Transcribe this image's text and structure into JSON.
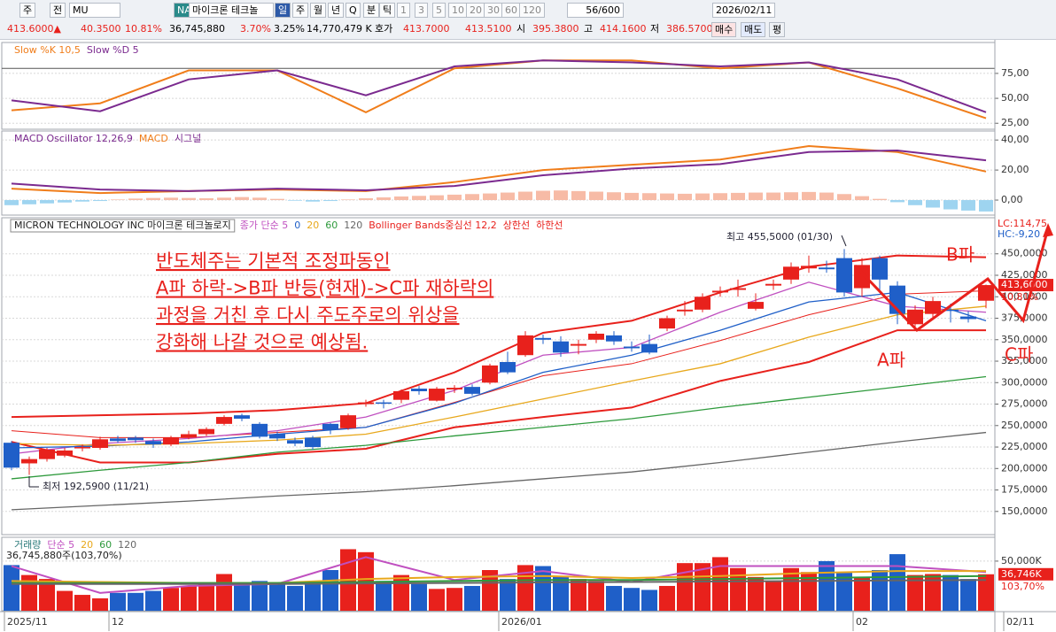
{
  "toolbar": {
    "row1": [
      "주",
      "전",
      "MU",
      "NA",
      "마이크론 테크놀",
      "일",
      "주",
      "월",
      "년",
      "Q",
      "분",
      "틱",
      "1",
      "3",
      "5",
      "10",
      "20",
      "30",
      "60",
      "120",
      "56/600",
      "2026/02/11"
    ],
    "row2": [
      "413.6000▲",
      "40.3500",
      "10.81%",
      "36,745,880",
      "3.70%",
      "3.25%",
      "14,770,479 K",
      "호가",
      "413.7000",
      "413.5100",
      "시",
      "395.3800",
      "고",
      "414.1600",
      "저",
      "386.5700",
      "매수",
      "매도",
      "평"
    ]
  },
  "chart_data": [
    {
      "type": "stochastic",
      "series": [
        {
          "name": "Slow %K 10,5",
          "color": "#f07d1a",
          "x": [
            0,
            5,
            10,
            15,
            20,
            25,
            30,
            35,
            40,
            45,
            50,
            55
          ],
          "values": [
            38,
            45,
            78,
            78,
            36,
            80,
            88,
            88,
            80,
            86,
            60,
            30
          ]
        },
        {
          "name": "Slow %D 5",
          "color": "#7b2a8f",
          "x": [
            0,
            5,
            10,
            15,
            20,
            25,
            30,
            35,
            40,
            45,
            50,
            55
          ],
          "values": [
            48,
            37,
            69,
            78,
            53,
            82,
            88,
            86,
            82,
            86,
            69,
            36
          ]
        }
      ],
      "ylim": [
        19,
        106
      ],
      "yticks": [
        {
          "value": 75,
          "label": "75,00"
        },
        {
          "value": 50,
          "label": "50,00"
        },
        {
          "value": 25,
          "label": "25,00"
        }
      ],
      "ref_line": 80
    },
    {
      "type": "macd",
      "oscillator": {
        "name": "MACD Oscillator 12,26,9",
        "pos_color": "#f7bba6",
        "neg_color": "#9ed4f0",
        "values": [
          -3.4,
          -2.8,
          -2.2,
          -1.6,
          -1.0,
          -0.6,
          0.4,
          1.0,
          1.4,
          1.6,
          1.4,
          1.2,
          1.6,
          2.0,
          1.6,
          0.8,
          -0.4,
          -1.0,
          -0.6,
          0.4,
          1.2,
          1.8,
          2.4,
          2.8,
          3.2,
          3.6,
          4.0,
          4.4,
          5.0,
          5.6,
          6.2,
          6.4,
          6.0,
          5.6,
          5.2,
          4.8,
          4.6,
          4.4,
          4.2,
          4.4,
          4.6,
          4.8,
          5.0,
          5.0,
          5.2,
          5.4,
          5.0,
          4.0,
          2.6,
          0.8,
          -1.4,
          -3.4,
          -5.0,
          -6.2,
          -7.0,
          -7.6
        ]
      },
      "series": [
        {
          "name": "MACD",
          "color": "#f07d1a",
          "x": [
            0,
            5,
            10,
            15,
            20,
            25,
            30,
            35,
            40,
            45,
            50,
            55
          ],
          "values": [
            7.6,
            4.7,
            6,
            7,
            6,
            12,
            20,
            23.5,
            27,
            36,
            32,
            19
          ]
        },
        {
          "name": "시그널",
          "color": "#7b2a8f",
          "x": [
            0,
            5,
            10,
            15,
            20,
            25,
            30,
            35,
            40,
            45,
            50,
            55
          ],
          "values": [
            11,
            7,
            6,
            7.6,
            6.5,
            9.4,
            16.5,
            21,
            24,
            32,
            33,
            26.5
          ]
        }
      ],
      "ylim": [
        -10,
        46
      ],
      "yticks": [
        {
          "value": 40,
          "label": "40,00"
        },
        {
          "value": 20,
          "label": "20,00"
        },
        {
          "value": 0,
          "label": "0,00"
        }
      ]
    },
    {
      "type": "candlestick",
      "security_name": "MICRON TECHNOLOGY INC  마이크론 테크놀로지",
      "up_color": "#e8211c",
      "down_color": "#1f5fc8",
      "ohlc": {
        "open": [
          230,
          206,
          211,
          215,
          224,
          224,
          235,
          236,
          232,
          228,
          236,
          240,
          252,
          262,
          252,
          240,
          233,
          236,
          252,
          247,
          275,
          277,
          280,
          293,
          279,
          292,
          295,
          300,
          324,
          332,
          352,
          348,
          343,
          350,
          355,
          342,
          345,
          363,
          383,
          385,
          405,
          408,
          386,
          413,
          420,
          433,
          434,
          445,
          410,
          445,
          413,
          368,
          380,
          385,
          377,
          395.38
        ],
        "high": [
          232,
          214,
          224,
          224,
          228,
          237,
          238,
          238,
          235,
          238,
          244,
          248,
          262,
          264,
          254,
          243,
          236,
          238,
          253,
          264,
          280,
          280,
          292,
          296,
          295,
          297,
          298,
          322,
          336,
          360,
          356,
          354,
          350,
          360,
          360,
          348,
          356,
          378,
          395,
          404,
          412,
          420,
          404,
          420,
          440,
          448,
          442,
          455.5,
          445,
          448,
          418,
          390,
          400,
          392,
          383,
          414.16
        ],
        "low": [
          198,
          192.59,
          208,
          213,
          220,
          222,
          230,
          230,
          224,
          226,
          234,
          238,
          250,
          255,
          235,
          232,
          226,
          222,
          240,
          245,
          272,
          270,
          276,
          286,
          278,
          288,
          285,
          298,
          310,
          330,
          345,
          330,
          333,
          346,
          344,
          336,
          333,
          360,
          378,
          382,
          400,
          400,
          384,
          408,
          415,
          428,
          428,
          400,
          400,
          405,
          368,
          365,
          375,
          370,
          370,
          386.57
        ],
        "close": [
          201,
          211,
          222,
          221,
          225,
          234,
          232,
          233,
          228,
          236,
          240,
          246,
          260,
          258,
          237,
          235,
          229,
          225,
          245,
          262,
          277,
          276,
          290,
          290,
          293,
          294,
          287,
          320,
          312,
          355,
          350,
          335,
          345,
          357,
          348,
          340,
          335,
          375,
          385,
          400,
          407,
          410,
          394,
          415,
          435,
          436,
          432,
          405,
          437,
          420,
          380,
          385,
          395,
          384,
          374,
          413.6
        ]
      },
      "series": [
        {
          "name": "종가 단순 5",
          "color": "#c050c0",
          "x": [
            0,
            5,
            10,
            15,
            20,
            25,
            30,
            35,
            40,
            45,
            50,
            55
          ],
          "values": [
            217,
            229,
            235,
            244,
            260,
            291,
            332,
            341,
            382,
            417,
            389,
            382
          ]
        },
        {
          "name": "0",
          "color": "#1f5fc8",
          "x": [
            0,
            5,
            10,
            15,
            20,
            25,
            30,
            35,
            40,
            45,
            50,
            55
          ],
          "values": [
            224,
            226,
            231,
            240,
            248,
            276,
            312,
            332,
            361,
            394,
            405,
            372
          ]
        },
        {
          "name": "20",
          "color": "#e8a81c",
          "x": [
            0,
            5,
            10,
            15,
            20,
            25,
            30,
            35,
            40,
            45,
            50,
            55
          ],
          "values": [
            229,
            227,
            229,
            233,
            240,
            260,
            281,
            302,
            322,
            353,
            379,
            389
          ]
        },
        {
          "name": "60",
          "color": "#2e9a3c",
          "x": [
            0,
            5,
            10,
            15,
            20,
            25,
            30,
            35,
            40,
            45,
            50,
            55
          ],
          "values": [
            188,
            198,
            207,
            219,
            227,
            238,
            248,
            258,
            271,
            283,
            295,
            307
          ]
        },
        {
          "name": "120",
          "color": "#666666",
          "x": [
            0,
            5,
            10,
            15,
            20,
            25,
            30,
            35,
            40,
            45,
            50,
            55
          ],
          "values": [
            152,
            157,
            162,
            168,
            173,
            180,
            188,
            196,
            207,
            219,
            231,
            242
          ]
        }
      ],
      "bands": [
        {
          "name": "Bollinger Bands중심선 12,2",
          "color": "#e8211c",
          "x": [
            0,
            5,
            10,
            15,
            20,
            25,
            30,
            35,
            40,
            45,
            50,
            55
          ],
          "values": [
            244,
            236,
            236,
            242,
            248,
            277,
            308,
            322,
            349,
            379,
            403,
            407
          ]
        },
        {
          "name": "상한선",
          "color": "#e8211c",
          "x": [
            0,
            5,
            10,
            15,
            20,
            25,
            30,
            35,
            40,
            45,
            50,
            55
          ],
          "values": [
            260,
            262,
            264,
            268,
            276,
            312,
            358,
            372,
            405,
            435,
            448,
            446
          ]
        },
        {
          "name": "하한선",
          "color": "#e8211c",
          "x": [
            0,
            5,
            10,
            15,
            20,
            25,
            30,
            35,
            40,
            45,
            50,
            55
          ],
          "values": [
            231,
            207,
            207,
            217,
            223,
            248,
            260,
            271,
            302,
            324,
            361,
            361
          ]
        }
      ],
      "ylim": [
        123,
        492
      ],
      "yticks": [
        {
          "value": 150,
          "label": "150,0000"
        },
        {
          "value": 175,
          "label": "175,0000"
        },
        {
          "value": 200,
          "label": "200,0000"
        },
        {
          "value": 225,
          "label": "225,0000"
        },
        {
          "value": 250,
          "label": "250,0000"
        },
        {
          "value": 275,
          "label": "275,0000"
        },
        {
          "value": 300,
          "label": "300,0000"
        },
        {
          "value": 325,
          "label": "325,0000"
        },
        {
          "value": 350,
          "label": "350,0000"
        },
        {
          "value": 375,
          "label": "375,0000"
        },
        {
          "value": 400,
          "label": "400,0000"
        },
        {
          "value": 425,
          "label": "425,0000"
        },
        {
          "value": 450,
          "label": "450,0000"
        }
      ],
      "last_label": {
        "value": 413.6,
        "label": "413,6000"
      },
      "last_change": "10,81%",
      "lc_label": "LC:114,75",
      "hc_label": "HC:-9,20",
      "annotations": {
        "text": [
          "반도체주는 기본적 조정파동인",
          "A파 하락->B파 반등(현재)->C파 재하락의",
          "과정을 거친 후 다시 주도주로의 위상을",
          "강화해 나갈 것으로 예상됨."
        ],
        "high": "최고 455,5000 (01/30)",
        "low": "최저 192,5900 (11/21)",
        "wave_a": "A파",
        "wave_b": "B파",
        "wave_c": "C파"
      }
    },
    {
      "type": "volume",
      "name": "거래량",
      "values": [
        46000,
        36000,
        32000,
        20000,
        16000,
        12500,
        18000,
        18000,
        20000,
        23000,
        25000,
        27000,
        37000,
        27000,
        30000,
        28000,
        25000,
        27000,
        41000,
        62000,
        59000,
        30000,
        36000,
        27000,
        22000,
        23000,
        25000,
        41000,
        32000,
        46000,
        45000,
        34000,
        32000,
        30000,
        25000,
        23000,
        21000,
        25000,
        48000,
        48000,
        54000,
        43000,
        34000,
        30000,
        43000,
        39000,
        50000,
        39000,
        34000,
        41000,
        57000,
        36000,
        37000,
        36000,
        32000,
        36746
      ],
      "series": [
        {
          "name": "단순 5",
          "color": "#c050c0",
          "x": [
            0,
            5,
            10,
            15,
            20,
            25,
            30,
            35,
            40,
            45,
            50,
            55
          ],
          "values": [
            45000,
            18000,
            25000,
            27000,
            54000,
            31000,
            40000,
            29000,
            45000,
            45000,
            45000,
            39000
          ]
        },
        {
          "name": "20",
          "color": "#e8a81c",
          "x": [
            0,
            5,
            10,
            15,
            20,
            25,
            30,
            35,
            40,
            45,
            50,
            55
          ],
          "values": [
            30000,
            29000,
            28000,
            28000,
            32000,
            34000,
            35000,
            33000,
            35000,
            38000,
            40000,
            40000
          ]
        },
        {
          "name": "60",
          "color": "#2e9a3c",
          "x": [
            0,
            5,
            10,
            15,
            20,
            25,
            30,
            35,
            40,
            45,
            50,
            55
          ],
          "values": [
            28000,
            28000,
            28000,
            28000,
            29000,
            30000,
            31000,
            31000,
            32000,
            33000,
            34000,
            35000
          ]
        },
        {
          "name": "120",
          "color": "#666666",
          "x": [
            0,
            5,
            10,
            15,
            20,
            25,
            30,
            35,
            40,
            45,
            50,
            55
          ],
          "values": [
            27000,
            27000,
            27000,
            27000,
            27500,
            28000,
            28500,
            29000,
            29500,
            30000,
            30500,
            31000
          ]
        }
      ],
      "ylim": [
        0,
        74000
      ],
      "yticks": [
        {
          "value": 50000,
          "label": "50,000K"
        }
      ],
      "summary": "36,745,880주(103,70%)",
      "last_label": {
        "value": 36746,
        "label": "36,746K"
      },
      "last_change": "103,70%",
      "xticks": [
        {
          "value": -0.4,
          "label": "2025/11"
        },
        {
          "value": 5.5,
          "label": "12"
        },
        {
          "value": 27.5,
          "label": "2026/01"
        },
        {
          "value": 47.5,
          "label": "02"
        },
        {
          "value": 56,
          "label": "02/11"
        }
      ]
    }
  ]
}
